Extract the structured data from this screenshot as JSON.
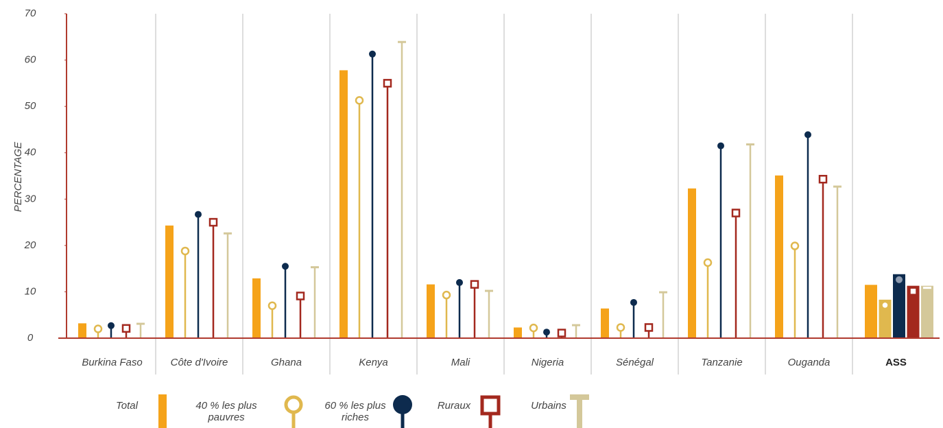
{
  "chart_data": {
    "type": "lollipop",
    "y_label": "PERCENTAGE",
    "categories": [
      "Burkina Faso",
      "Côte d'Ivoire",
      "Ghana",
      "Kenya",
      "Mali",
      "Nigeria",
      "Sénégal",
      "Tanzanie",
      "Ouganda",
      "ASS"
    ],
    "series": [
      {
        "name": "Total",
        "color": "#f5a31a",
        "marker": "bar",
        "values": [
          3.2,
          24.3,
          12.9,
          57.8,
          11.6,
          2.3,
          6.4,
          32.3,
          35.1,
          11.5
        ]
      },
      {
        "name": "40 % les plus pauvres",
        "color": "#e0b84e",
        "marker": "circle",
        "values": [
          2.0,
          18.8,
          7.0,
          51.3,
          9.3,
          2.2,
          2.3,
          16.3,
          19.9,
          8.3
        ]
      },
      {
        "name": "60 % les plus riches",
        "color": "#0d2b4e",
        "marker": "dot",
        "values": [
          2.7,
          26.7,
          15.5,
          61.3,
          12.0,
          1.3,
          7.7,
          41.5,
          43.9,
          13.8
        ]
      },
      {
        "name": "Ruraux",
        "color": "#a3281e",
        "marker": "square",
        "values": [
          2.1,
          25.0,
          9.1,
          55.0,
          11.6,
          1.1,
          2.3,
          27.0,
          34.3,
          11.3
        ]
      },
      {
        "name": "Urbains",
        "color": "#d4c89a",
        "marker": "t",
        "values": [
          3.1,
          22.6,
          15.3,
          63.9,
          10.2,
          2.8,
          9.9,
          41.8,
          32.7,
          11.3
        ]
      }
    ],
    "ylim": [
      0,
      70
    ],
    "yticks": [
      0,
      10,
      20,
      30,
      40,
      50,
      60,
      70
    ]
  }
}
